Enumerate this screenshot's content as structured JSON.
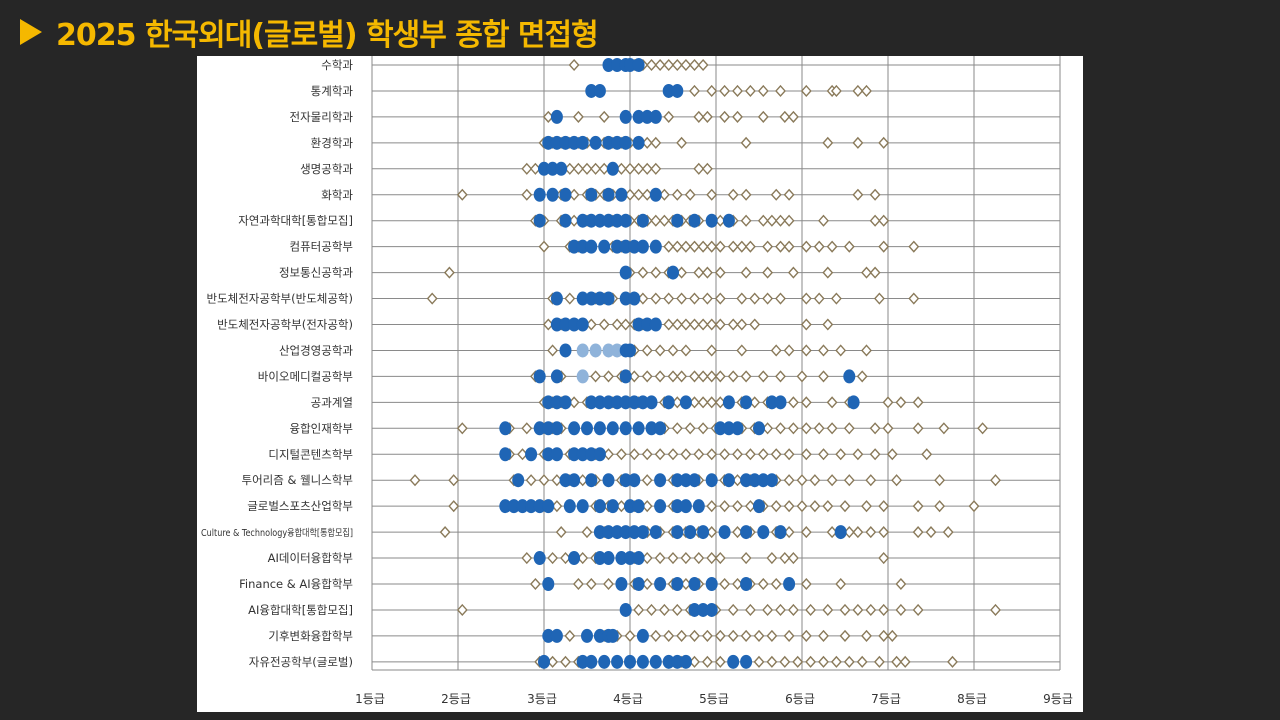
{
  "slide": {
    "title": "2025 한국외대(글로벌) 학생부 종합 면접형"
  },
  "colors": {
    "title": "#f5b800",
    "applicant_marker": "#8a7a5a",
    "admitted_marker": "#1f65b5",
    "admitted_light": "#8fb3da",
    "grid": "#8a8a8a"
  },
  "chart_data": {
    "type": "scatter",
    "x_ticks": [
      "1등급",
      "2등급",
      "3등급",
      "4등급",
      "5등급",
      "6등급",
      "7등급",
      "8등급",
      "9등급"
    ],
    "xlim": [
      1,
      9
    ],
    "grid": true,
    "markers": {
      "applicants": "hollow-diamond",
      "admitted": "filled-circle"
    },
    "categories": [
      {
        "name": "수학과",
        "applicants": [
          3.35,
          3.75,
          3.85,
          3.95,
          4.05,
          4.15,
          4.25,
          4.35,
          4.45,
          4.55,
          4.65,
          4.75,
          4.85
        ],
        "admitted": [
          3.75,
          3.85,
          3.95,
          4.0,
          4.1
        ],
        "admitted_light": []
      },
      {
        "name": "통계학과",
        "applicants": [
          3.55,
          3.65,
          4.45,
          4.55,
          4.75,
          4.95,
          5.1,
          5.25,
          5.4,
          5.55,
          5.75,
          6.05,
          6.35,
          6.4,
          6.65,
          6.75
        ],
        "admitted": [
          3.55,
          3.65,
          4.45,
          4.55
        ],
        "admitted_light": []
      },
      {
        "name": "전자물리학과",
        "applicants": [
          3.05,
          3.4,
          3.7,
          3.95,
          4.1,
          4.2,
          4.3,
          4.45,
          4.8,
          4.9,
          5.1,
          5.25,
          5.55,
          5.8,
          5.9
        ],
        "admitted": [
          3.15,
          3.95,
          4.1,
          4.2,
          4.3
        ],
        "admitted_light": []
      },
      {
        "name": "환경학과",
        "applicants": [
          3.0,
          3.1,
          3.2,
          3.3,
          3.4,
          3.5,
          3.6,
          3.7,
          3.8,
          3.9,
          4.0,
          4.1,
          4.2,
          4.3,
          4.6,
          5.35,
          6.3,
          6.65,
          6.95
        ],
        "admitted": [
          3.05,
          3.15,
          3.25,
          3.35,
          3.45,
          3.6,
          3.75,
          3.85,
          3.95,
          4.1
        ],
        "admitted_light": []
      },
      {
        "name": "생명공학과",
        "applicants": [
          2.8,
          2.9,
          3.0,
          3.1,
          3.2,
          3.3,
          3.4,
          3.5,
          3.6,
          3.7,
          3.8,
          3.9,
          4.0,
          4.1,
          4.2,
          4.3,
          4.8,
          4.9
        ],
        "admitted": [
          3.0,
          3.1,
          3.2,
          3.8
        ],
        "admitted_light": []
      },
      {
        "name": "화학과",
        "applicants": [
          2.05,
          2.8,
          2.95,
          3.1,
          3.2,
          3.35,
          3.5,
          3.6,
          3.7,
          3.8,
          3.9,
          4.0,
          4.1,
          4.2,
          4.3,
          4.4,
          4.55,
          4.7,
          4.95,
          5.2,
          5.35,
          5.7,
          5.85,
          6.65,
          6.85
        ],
        "admitted": [
          2.95,
          3.1,
          3.25,
          3.55,
          3.75,
          3.9,
          4.3
        ],
        "admitted_light": []
      },
      {
        "name": "자연과학대학[통합모집]",
        "applicants": [
          2.9,
          3.0,
          3.2,
          3.35,
          3.5,
          3.65,
          3.8,
          4.0,
          4.1,
          4.2,
          4.3,
          4.4,
          4.5,
          4.6,
          4.7,
          4.8,
          4.95,
          5.05,
          5.2,
          5.35,
          5.55,
          5.65,
          5.75,
          5.85,
          6.25,
          6.85,
          6.95
        ],
        "admitted": [
          2.95,
          3.25,
          3.45,
          3.55,
          3.65,
          3.75,
          3.85,
          3.95,
          4.15,
          4.55,
          4.75,
          4.95,
          5.15
        ],
        "admitted_light": []
      },
      {
        "name": "컴퓨터공학부",
        "applicants": [
          3.0,
          3.3,
          3.4,
          3.55,
          3.7,
          3.8,
          3.9,
          4.0,
          4.15,
          4.3,
          4.45,
          4.55,
          4.65,
          4.75,
          4.85,
          4.95,
          5.05,
          5.2,
          5.3,
          5.4,
          5.6,
          5.75,
          5.85,
          6.05,
          6.2,
          6.35,
          6.55,
          6.95,
          7.3
        ],
        "admitted": [
          3.35,
          3.45,
          3.55,
          3.7,
          3.85,
          3.95,
          4.05,
          4.15,
          4.3
        ],
        "admitted_light": []
      },
      {
        "name": "정보통신공학과",
        "applicants": [
          1.9,
          4.0,
          4.15,
          4.3,
          4.45,
          4.6,
          4.8,
          4.9,
          5.05,
          5.35,
          5.6,
          5.9,
          6.3,
          6.75,
          6.85
        ],
        "admitted": [
          3.95,
          4.5
        ],
        "admitted_light": []
      },
      {
        "name": "반도체전자공학부(반도체공학)",
        "applicants": [
          1.7,
          3.1,
          3.3,
          3.45,
          3.6,
          3.7,
          3.8,
          3.95,
          4.05,
          4.15,
          4.3,
          4.45,
          4.6,
          4.75,
          4.9,
          5.05,
          5.3,
          5.45,
          5.6,
          5.75,
          6.05,
          6.2,
          6.4,
          6.9,
          7.3
        ],
        "admitted": [
          3.15,
          3.45,
          3.55,
          3.65,
          3.75,
          3.95,
          4.05
        ],
        "admitted_light": []
      },
      {
        "name": "반도체전자공학부(전자공학)",
        "applicants": [
          3.05,
          3.2,
          3.35,
          3.45,
          3.55,
          3.7,
          3.85,
          3.95,
          4.05,
          4.15,
          4.3,
          4.45,
          4.55,
          4.65,
          4.75,
          4.85,
          4.95,
          5.05,
          5.2,
          5.3,
          5.45,
          6.05,
          6.3
        ],
        "admitted": [
          3.15,
          3.25,
          3.35,
          3.45,
          4.1,
          4.2,
          4.3
        ],
        "admitted_light": []
      },
      {
        "name": "산업경영공학과",
        "applicants": [
          3.1,
          3.25,
          3.45,
          3.6,
          3.75,
          3.85,
          3.95,
          4.05,
          4.2,
          4.35,
          4.5,
          4.65,
          4.95,
          5.3,
          5.7,
          5.85,
          6.05,
          6.25,
          6.45,
          6.75
        ],
        "admitted": [
          3.25,
          3.95,
          4.0
        ],
        "admitted_light": [
          3.45,
          3.6,
          3.75,
          3.85
        ]
      },
      {
        "name": "바이오메디컬공학부",
        "applicants": [
          2.9,
          3.2,
          3.45,
          3.6,
          3.75,
          3.9,
          4.05,
          4.2,
          4.35,
          4.5,
          4.6,
          4.75,
          4.85,
          4.95,
          5.05,
          5.2,
          5.35,
          5.55,
          5.75,
          6.0,
          6.25,
          6.55,
          6.7
        ],
        "admitted": [
          2.95,
          3.15,
          3.95,
          6.55
        ],
        "admitted_light": [
          3.45
        ]
      },
      {
        "name": "공과계열",
        "applicants": [
          3.0,
          3.1,
          3.2,
          3.35,
          3.5,
          3.65,
          3.8,
          3.95,
          4.1,
          4.25,
          4.4,
          4.55,
          4.65,
          4.75,
          4.85,
          4.95,
          5.05,
          5.15,
          5.3,
          5.45,
          5.6,
          5.75,
          5.9,
          6.05,
          6.35,
          6.55,
          7.0,
          7.15,
          7.35
        ],
        "admitted": [
          3.05,
          3.15,
          3.25,
          3.55,
          3.65,
          3.75,
          3.85,
          3.95,
          4.05,
          4.15,
          4.25,
          4.45,
          4.65,
          5.15,
          5.35,
          5.65,
          5.75,
          6.6
        ],
        "admitted_light": []
      },
      {
        "name": "융합인재학부",
        "applicants": [
          2.05,
          2.6,
          2.8,
          3.0,
          3.1,
          3.2,
          3.35,
          3.5,
          3.65,
          3.8,
          3.95,
          4.1,
          4.25,
          4.4,
          4.55,
          4.7,
          4.85,
          5.0,
          5.15,
          5.3,
          5.45,
          5.6,
          5.75,
          5.9,
          6.05,
          6.2,
          6.35,
          6.55,
          6.85,
          7.0,
          7.35,
          7.65,
          8.1
        ],
        "admitted": [
          2.55,
          2.95,
          3.05,
          3.15,
          3.35,
          3.5,
          3.65,
          3.8,
          3.95,
          4.1,
          4.25,
          4.35,
          5.05,
          5.15,
          5.25,
          5.5
        ],
        "admitted_light": []
      },
      {
        "name": "디지털콘텐츠학부",
        "applicants": [
          2.6,
          2.75,
          3.0,
          3.15,
          3.3,
          3.45,
          3.6,
          3.75,
          3.9,
          4.05,
          4.2,
          4.35,
          4.5,
          4.65,
          4.8,
          4.95,
          5.1,
          5.25,
          5.4,
          5.55,
          5.7,
          5.85,
          6.05,
          6.25,
          6.45,
          6.65,
          6.85,
          7.05,
          7.45
        ],
        "admitted": [
          2.55,
          2.85,
          3.05,
          3.15,
          3.35,
          3.45,
          3.55,
          3.65
        ],
        "admitted_light": []
      },
      {
        "name": "투어리즘 & 웰니스학부",
        "applicants": [
          1.5,
          1.95,
          2.65,
          2.85,
          3.0,
          3.15,
          3.3,
          3.45,
          3.6,
          3.75,
          3.9,
          4.05,
          4.2,
          4.35,
          4.5,
          4.65,
          4.8,
          4.95,
          5.1,
          5.25,
          5.4,
          5.55,
          5.7,
          5.85,
          6.0,
          6.15,
          6.35,
          6.55,
          6.8,
          7.1,
          7.6,
          8.25
        ],
        "admitted": [
          2.7,
          3.25,
          3.35,
          3.55,
          3.75,
          3.95,
          4.05,
          4.35,
          4.55,
          4.65,
          4.75,
          4.95,
          5.15,
          5.35,
          5.45,
          5.55,
          5.65
        ],
        "admitted_light": []
      },
      {
        "name": "글로벌스포츠산업학부",
        "applicants": [
          1.95,
          2.55,
          2.65,
          2.75,
          2.85,
          3.0,
          3.15,
          3.3,
          3.45,
          3.6,
          3.75,
          3.9,
          4.05,
          4.2,
          4.35,
          4.5,
          4.65,
          4.8,
          4.95,
          5.1,
          5.25,
          5.4,
          5.55,
          5.7,
          5.85,
          6.0,
          6.15,
          6.3,
          6.5,
          6.75,
          6.95,
          7.35,
          7.6,
          8.0
        ],
        "admitted": [
          2.55,
          2.65,
          2.75,
          2.85,
          2.95,
          3.05,
          3.3,
          3.45,
          3.65,
          3.8,
          4.0,
          4.1,
          4.35,
          4.55,
          4.65,
          4.8,
          5.5
        ],
        "admitted_light": []
      },
      {
        "name": "Culture & Technology융합대학[통합모집]",
        "applicants": [
          1.85,
          3.2,
          3.5,
          3.7,
          3.85,
          3.95,
          4.05,
          4.2,
          4.35,
          4.5,
          4.65,
          4.8,
          4.95,
          5.1,
          5.25,
          5.4,
          5.55,
          5.7,
          5.85,
          6.05,
          6.35,
          6.55,
          6.65,
          6.8,
          6.95,
          7.35,
          7.5,
          7.7
        ],
        "admitted": [
          3.65,
          3.75,
          3.85,
          3.95,
          4.05,
          4.15,
          4.3,
          4.55,
          4.7,
          4.85,
          5.1,
          5.35,
          5.55,
          5.75,
          6.45
        ],
        "admitted_light": []
      },
      {
        "name": "AI데이터융합학부",
        "applicants": [
          2.8,
          3.1,
          3.25,
          3.45,
          3.6,
          3.75,
          3.9,
          4.05,
          4.2,
          4.35,
          4.5,
          4.65,
          4.8,
          4.95,
          5.05,
          5.35,
          5.65,
          5.8,
          5.9,
          6.95
        ],
        "admitted": [
          2.95,
          3.35,
          3.65,
          3.75,
          3.9,
          4.0,
          4.1
        ],
        "admitted_light": []
      },
      {
        "name": "Finance & AI융합학부",
        "applicants": [
          2.9,
          3.4,
          3.55,
          3.75,
          3.9,
          4.05,
          4.2,
          4.35,
          4.5,
          4.65,
          4.8,
          4.95,
          5.1,
          5.25,
          5.4,
          5.55,
          5.7,
          5.85,
          6.05,
          6.45,
          7.15
        ],
        "admitted": [
          3.05,
          3.9,
          4.1,
          4.35,
          4.55,
          4.75,
          4.95,
          5.35,
          5.85
        ],
        "admitted_light": []
      },
      {
        "name": "AI융합대학[통합모집]",
        "applicants": [
          2.05,
          3.95,
          4.1,
          4.25,
          4.4,
          4.55,
          4.7,
          4.85,
          5.0,
          5.2,
          5.4,
          5.6,
          5.75,
          5.9,
          6.1,
          6.3,
          6.5,
          6.65,
          6.8,
          6.95,
          7.15,
          7.35,
          8.25
        ],
        "admitted": [
          3.95,
          4.75,
          4.85,
          4.95
        ],
        "admitted_light": []
      },
      {
        "name": "기후변화융합학부",
        "applicants": [
          3.05,
          3.15,
          3.3,
          3.5,
          3.7,
          3.85,
          4.0,
          4.15,
          4.3,
          4.45,
          4.6,
          4.75,
          4.9,
          5.05,
          5.2,
          5.35,
          5.5,
          5.65,
          5.85,
          6.05,
          6.25,
          6.5,
          6.75,
          6.95,
          7.05
        ],
        "admitted": [
          3.05,
          3.15,
          3.5,
          3.65,
          3.75,
          3.8,
          4.15
        ],
        "admitted_light": []
      },
      {
        "name": "자유전공학부(글로벌)",
        "applicants": [
          2.95,
          3.1,
          3.25,
          3.4,
          3.55,
          3.7,
          3.85,
          4.0,
          4.15,
          4.3,
          4.45,
          4.6,
          4.75,
          4.9,
          5.05,
          5.2,
          5.35,
          5.5,
          5.65,
          5.8,
          5.95,
          6.1,
          6.25,
          6.4,
          6.55,
          6.7,
          6.9,
          7.1,
          7.2,
          7.75
        ],
        "admitted": [
          3.0,
          3.45,
          3.55,
          3.7,
          3.85,
          4.0,
          4.15,
          4.3,
          4.45,
          4.55,
          4.65,
          5.2,
          5.35
        ],
        "admitted_light": []
      }
    ]
  }
}
